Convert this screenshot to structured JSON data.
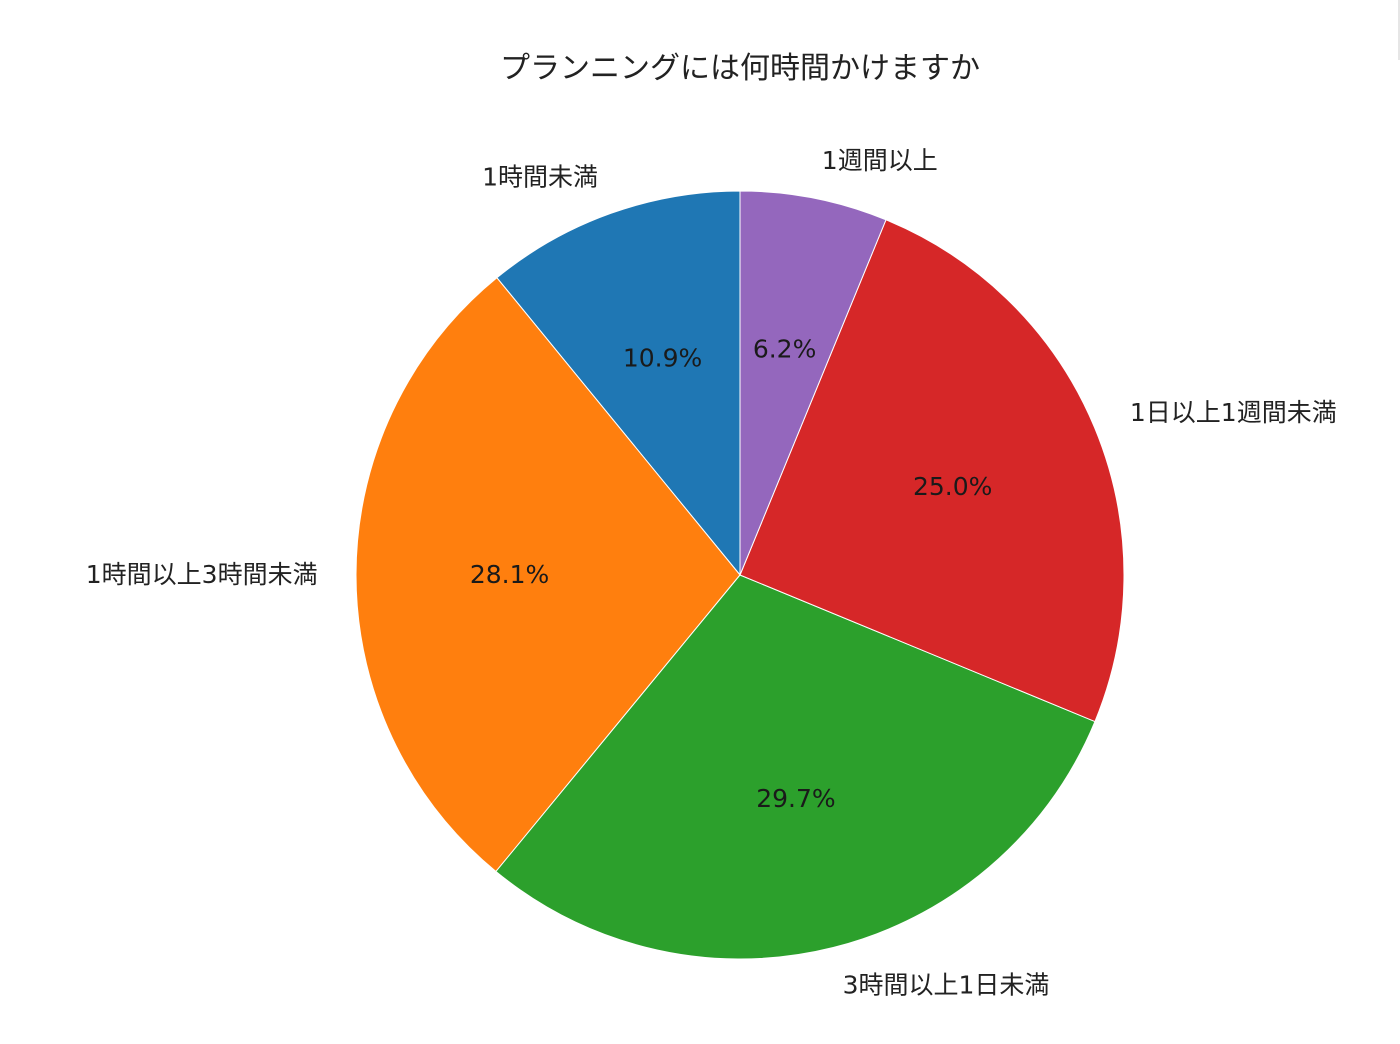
{
  "chart_data": {
    "type": "pie",
    "title": "プランニングには何時間かけますか",
    "start_angle_deg": 90,
    "direction": "counterclockwise",
    "slices": [
      {
        "label": "1時間未満",
        "value": 10.9,
        "pct_label": "10.9%",
        "color": "#1f77b4"
      },
      {
        "label": "1時間以上3時間未満",
        "value": 28.1,
        "pct_label": "28.1%",
        "color": "#ff7f0e"
      },
      {
        "label": "3時間以上1日未満",
        "value": 29.7,
        "pct_label": "29.7%",
        "color": "#2ca02c"
      },
      {
        "label": "1日以上1週間未満",
        "value": 25.0,
        "pct_label": "25.0%",
        "color": "#d62728"
      },
      {
        "label": "1週間以上",
        "value": 6.2,
        "pct_label": "6.2%",
        "color": "#9467bd"
      }
    ]
  }
}
